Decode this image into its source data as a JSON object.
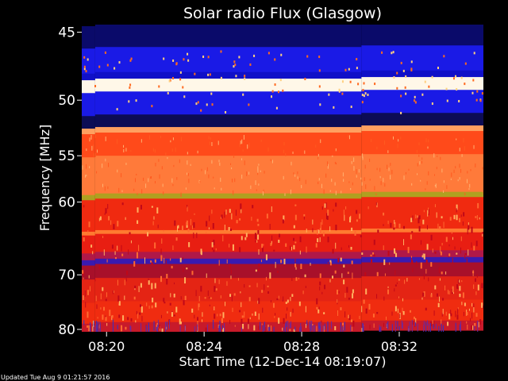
{
  "chart_data": {
    "type": "heatmap",
    "title": "Solar radio Flux (Glasgow)",
    "xlabel": "Start Time (12-Dec-14 08:19:07)",
    "ylabel": "Frequency [MHz]",
    "footer": "Updated Tue Aug  9 01:21:57 2016",
    "x_range_seconds_after_start": [
      -8,
      980
    ],
    "x_ticks": [
      {
        "label": "08:20",
        "seconds_after_start": 53
      },
      {
        "label": "08:24",
        "seconds_after_start": 293
      },
      {
        "label": "08:28",
        "seconds_after_start": 533
      },
      {
        "label": "08:32",
        "seconds_after_start": 773
      }
    ],
    "y_range_mhz": [
      44.5,
      80.5
    ],
    "y_ticks": [
      45,
      50,
      55,
      60,
      70,
      80
    ],
    "segments_seconds_after_start": [
      [
        -8,
        25
      ],
      [
        25,
        680
      ],
      [
        680,
        980
      ]
    ],
    "bands": [
      {
        "from_mhz": 44.5,
        "to_mhz": 46.0,
        "level": "very-low",
        "color": "#0a0a6a"
      },
      {
        "from_mhz": 46.0,
        "to_mhz": 47.8,
        "level": "low",
        "color": "#1a1ae6"
      },
      {
        "from_mhz": 47.8,
        "to_mhz": 48.3,
        "level": "low",
        "color": "#1010c8"
      },
      {
        "from_mhz": 48.3,
        "to_mhz": 49.3,
        "level": "very-high",
        "color": "#fff7e8"
      },
      {
        "from_mhz": 49.3,
        "to_mhz": 51.2,
        "level": "low",
        "color": "#1a1ae6"
      },
      {
        "from_mhz": 51.2,
        "to_mhz": 52.3,
        "level": "very-low",
        "color": "#0c0c55"
      },
      {
        "from_mhz": 52.3,
        "to_mhz": 52.8,
        "level": "high",
        "color": "#ffa060"
      },
      {
        "from_mhz": 52.8,
        "to_mhz": 55.0,
        "level": "high",
        "color": "#ff4a1a"
      },
      {
        "from_mhz": 55.0,
        "to_mhz": 59.0,
        "level": "high",
        "color": "#ff7a3a"
      },
      {
        "from_mhz": 59.0,
        "to_mhz": 59.6,
        "level": "saturated",
        "color": "#b0a020"
      },
      {
        "from_mhz": 59.6,
        "to_mhz": 63.5,
        "level": "medium",
        "color": "#f02a10"
      },
      {
        "from_mhz": 63.5,
        "to_mhz": 64.0,
        "level": "high",
        "color": "#ff7a30"
      },
      {
        "from_mhz": 64.0,
        "to_mhz": 66.5,
        "level": "medium",
        "color": "#e81e12"
      },
      {
        "from_mhz": 66.5,
        "to_mhz": 67.5,
        "level": "medium-low",
        "color": "#b01848"
      },
      {
        "from_mhz": 67.5,
        "to_mhz": 68.3,
        "level": "low",
        "color": "#3a1ab0"
      },
      {
        "from_mhz": 68.3,
        "to_mhz": 70.5,
        "level": "medium-low",
        "color": "#a8102a"
      },
      {
        "from_mhz": 70.5,
        "to_mhz": 74.5,
        "level": "medium",
        "color": "#e42414"
      },
      {
        "from_mhz": 74.5,
        "to_mhz": 78.5,
        "level": "medium",
        "color": "#f02c10"
      },
      {
        "from_mhz": 78.5,
        "to_mhz": 80.5,
        "level": "medium-low",
        "color": "#c81a2a"
      }
    ],
    "colors": {
      "background": "#000000",
      "text": "#ffffff"
    }
  }
}
